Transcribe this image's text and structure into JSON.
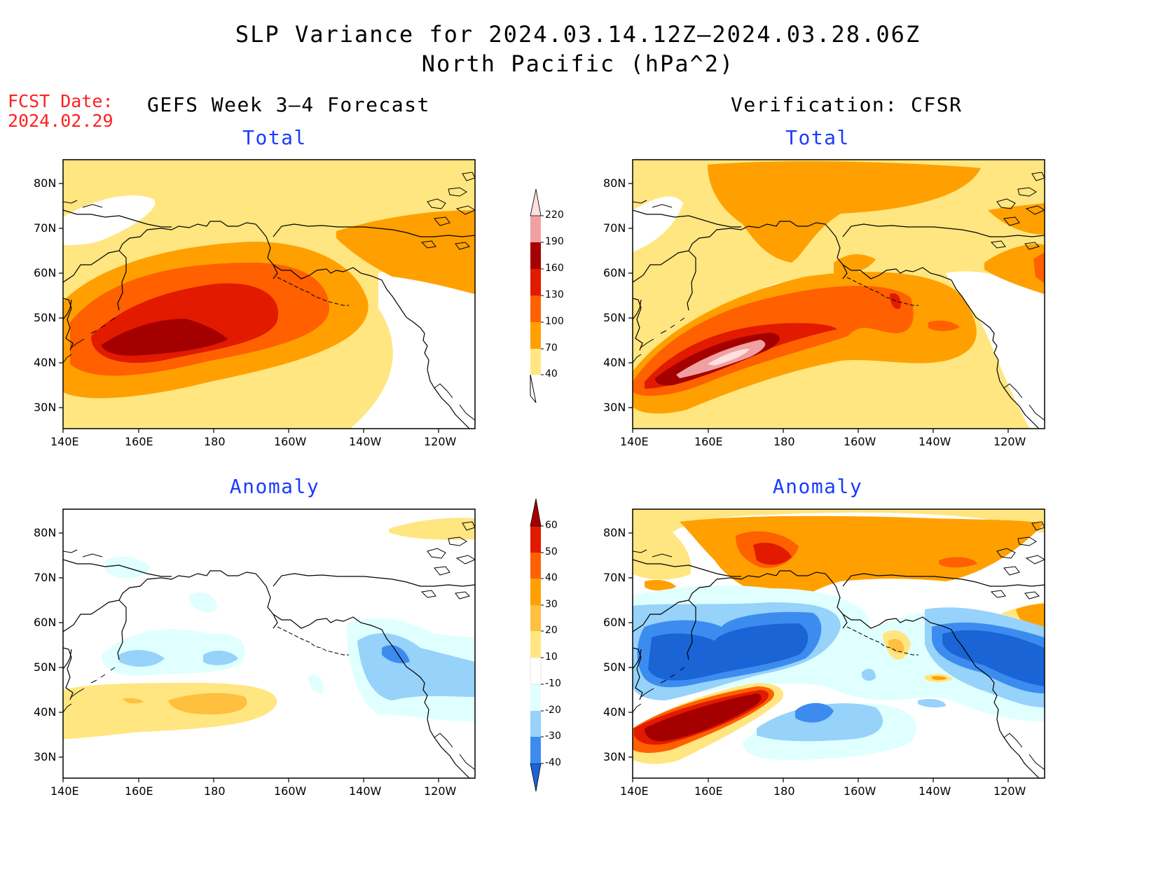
{
  "title": {
    "line1": "SLP Variance for 2024.03.14.12Z–2024.03.28.06Z",
    "line2": "North Pacific (hPa^2)"
  },
  "forecast_date": {
    "label": "FCST Date:",
    "value": "2024.02.29"
  },
  "columns": {
    "left": "GEFS Week 3–4 Forecast",
    "right": "Verification: CFSR"
  },
  "panels": {
    "top_left_title": "Total",
    "top_right_title": "Total",
    "bottom_left_title": "Anomaly",
    "bottom_right_title": "Anomaly"
  },
  "axes": {
    "lat_labels": [
      "80N",
      "70N",
      "60N",
      "50N",
      "40N",
      "30N"
    ],
    "lon_labels": [
      "140E",
      "160E",
      "180",
      "160W",
      "140W",
      "120W"
    ]
  },
  "colorbars": {
    "total": {
      "levels": [
        "40",
        "70",
        "100",
        "130",
        "160",
        "190",
        "220"
      ],
      "colors": [
        "#ffe680",
        "#ffa000",
        "#ff6000",
        "#e11a00",
        "#a50000",
        "#f0a0a0",
        "#ffe0e0"
      ]
    },
    "anomaly": {
      "levels": [
        "-40",
        "-30",
        "-20",
        "-10",
        "10",
        "20",
        "30",
        "40",
        "50",
        "60"
      ],
      "colors": [
        "#1a64d6",
        "#3c8cf0",
        "#96d2fa",
        "#e0ffff",
        "#ffffff",
        "#ffe680",
        "#ffc040",
        "#ffa000",
        "#ff6000",
        "#e11a00",
        "#a50000"
      ]
    }
  }
}
